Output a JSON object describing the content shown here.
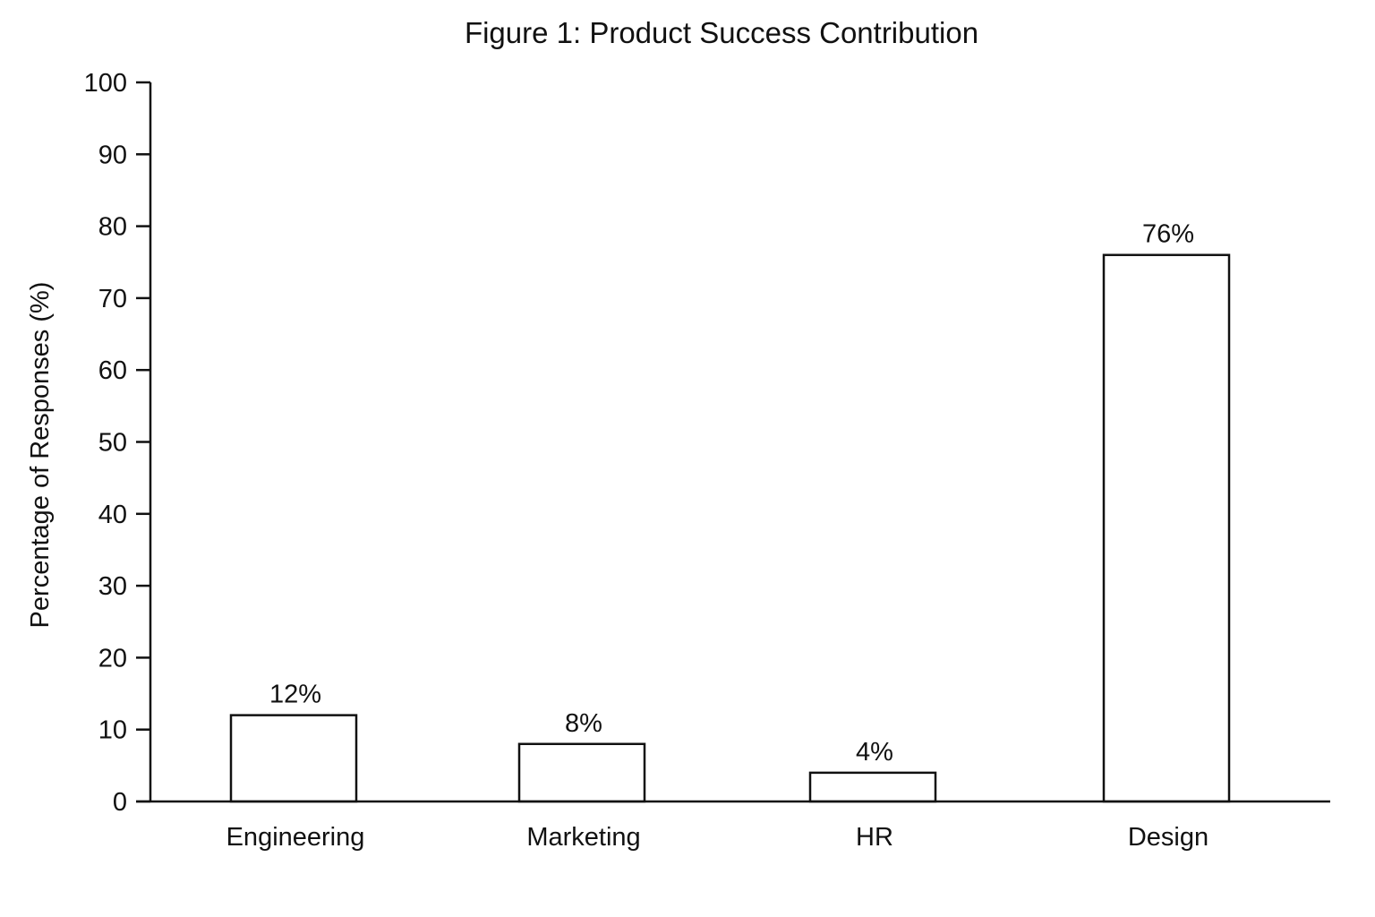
{
  "chart_data": {
    "type": "bar",
    "title": "Figure 1: Product Success Contribution",
    "xlabel": "",
    "ylabel": "Percentage of Responses (%)",
    "categories": [
      "Engineering",
      "Marketing",
      "HR",
      "Design"
    ],
    "values": [
      12,
      8,
      4,
      76
    ],
    "value_labels": [
      "12%",
      "8%",
      "4%",
      "76%"
    ],
    "ylim": [
      0,
      100
    ],
    "yticks": [
      0,
      10,
      20,
      30,
      40,
      50,
      60,
      70,
      80,
      90,
      100
    ],
    "ytick_labels": [
      "0",
      "10",
      "20",
      "30",
      "40",
      "50",
      "60",
      "70",
      "80",
      "90",
      "100"
    ],
    "grid": false,
    "legend": "none",
    "colors": {
      "bar_fill": "#ffffff",
      "bar_edge": "#111111",
      "text": "#111111"
    }
  }
}
